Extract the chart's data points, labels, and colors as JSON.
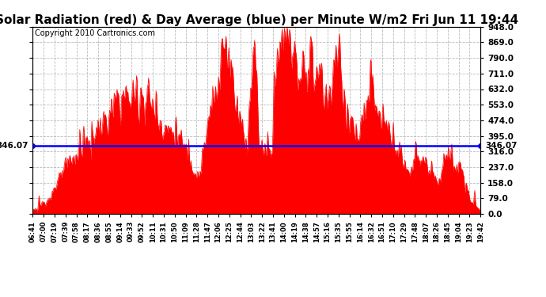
{
  "title": "Solar Radiation (red) & Day Average (blue) per Minute W/m2 Fri Jun 11 19:44",
  "copyright": "Copyright 2010 Cartronics.com",
  "average_line": 346.07,
  "average_label": "346.07",
  "ymin": 0.0,
  "ymax": 948.0,
  "yticks": [
    0.0,
    79.0,
    158.0,
    237.0,
    316.0,
    395.0,
    474.0,
    553.0,
    632.0,
    711.0,
    790.0,
    869.0,
    948.0
  ],
  "xtick_labels": [
    "06:41",
    "07:00",
    "07:19",
    "07:39",
    "07:58",
    "08:17",
    "08:36",
    "08:55",
    "09:14",
    "09:33",
    "09:52",
    "10:11",
    "10:31",
    "10:50",
    "11:09",
    "11:28",
    "11:47",
    "12:06",
    "12:25",
    "12:44",
    "13:03",
    "13:22",
    "13:41",
    "14:00",
    "14:19",
    "14:38",
    "14:57",
    "15:16",
    "15:35",
    "15:55",
    "16:14",
    "16:32",
    "16:51",
    "17:10",
    "17:29",
    "17:48",
    "18:07",
    "18:26",
    "18:45",
    "19:04",
    "19:23",
    "19:42"
  ],
  "bar_color": "#FF0000",
  "line_color": "#0000FF",
  "background_color": "#FFFFFF",
  "grid_color": "#AAAAAA",
  "title_fontsize": 11,
  "copyright_fontsize": 7
}
